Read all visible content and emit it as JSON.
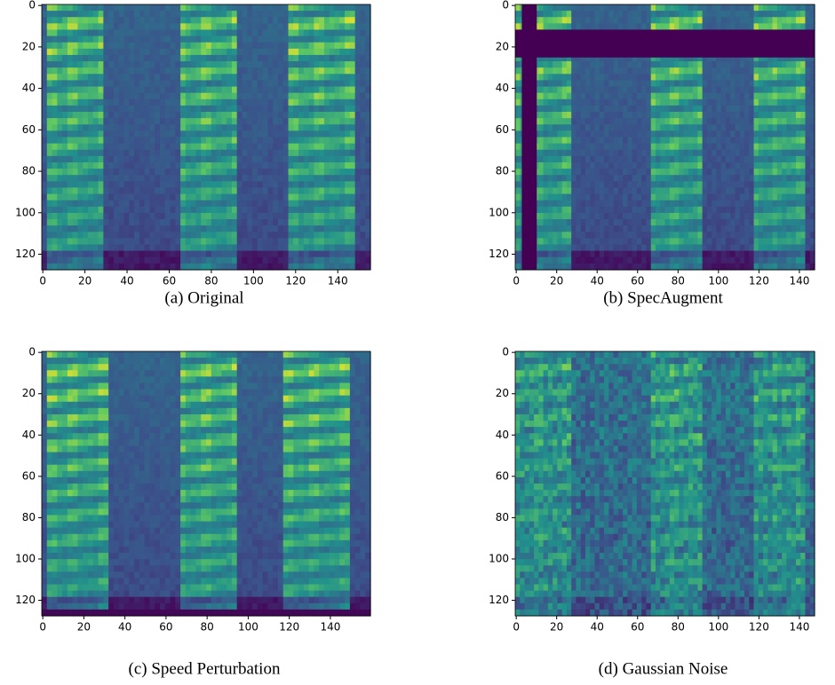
{
  "chart_data": [
    {
      "type": "image",
      "caption": "(a) Original",
      "xlim": [
        -0.5,
        155.5
      ],
      "ylim": [
        127.5,
        -0.5
      ],
      "xticks": [
        0,
        20,
        40,
        60,
        80,
        100,
        120,
        140
      ],
      "yticks": [
        0,
        20,
        40,
        60,
        80,
        100,
        120
      ]
    },
    {
      "type": "image",
      "caption": "(b) SpecAugment",
      "xlim": [
        -0.5,
        147.5
      ],
      "ylim": [
        127.5,
        -0.5
      ],
      "xticks": [
        0,
        20,
        40,
        60,
        80,
        100,
        120,
        140
      ],
      "yticks": [
        0,
        20,
        40,
        60,
        80,
        100,
        120
      ]
    },
    {
      "type": "image",
      "caption": "(c) Speed Perturbation",
      "xlim": [
        -0.5,
        159.5
      ],
      "ylim": [
        127.5,
        -0.5
      ],
      "xticks": [
        0,
        20,
        40,
        60,
        80,
        100,
        120,
        140
      ],
      "yticks": [
        0,
        20,
        40,
        60,
        80,
        100,
        120
      ]
    },
    {
      "type": "image",
      "caption": "(d) Gaussian Noise",
      "xlim": [
        -0.5,
        147.5
      ],
      "ylim": [
        127.5,
        -0.5
      ],
      "xticks": [
        0,
        20,
        40,
        60,
        80,
        100,
        120,
        140
      ],
      "yticks": [
        0,
        20,
        40,
        60,
        80,
        100,
        120
      ]
    }
  ]
}
